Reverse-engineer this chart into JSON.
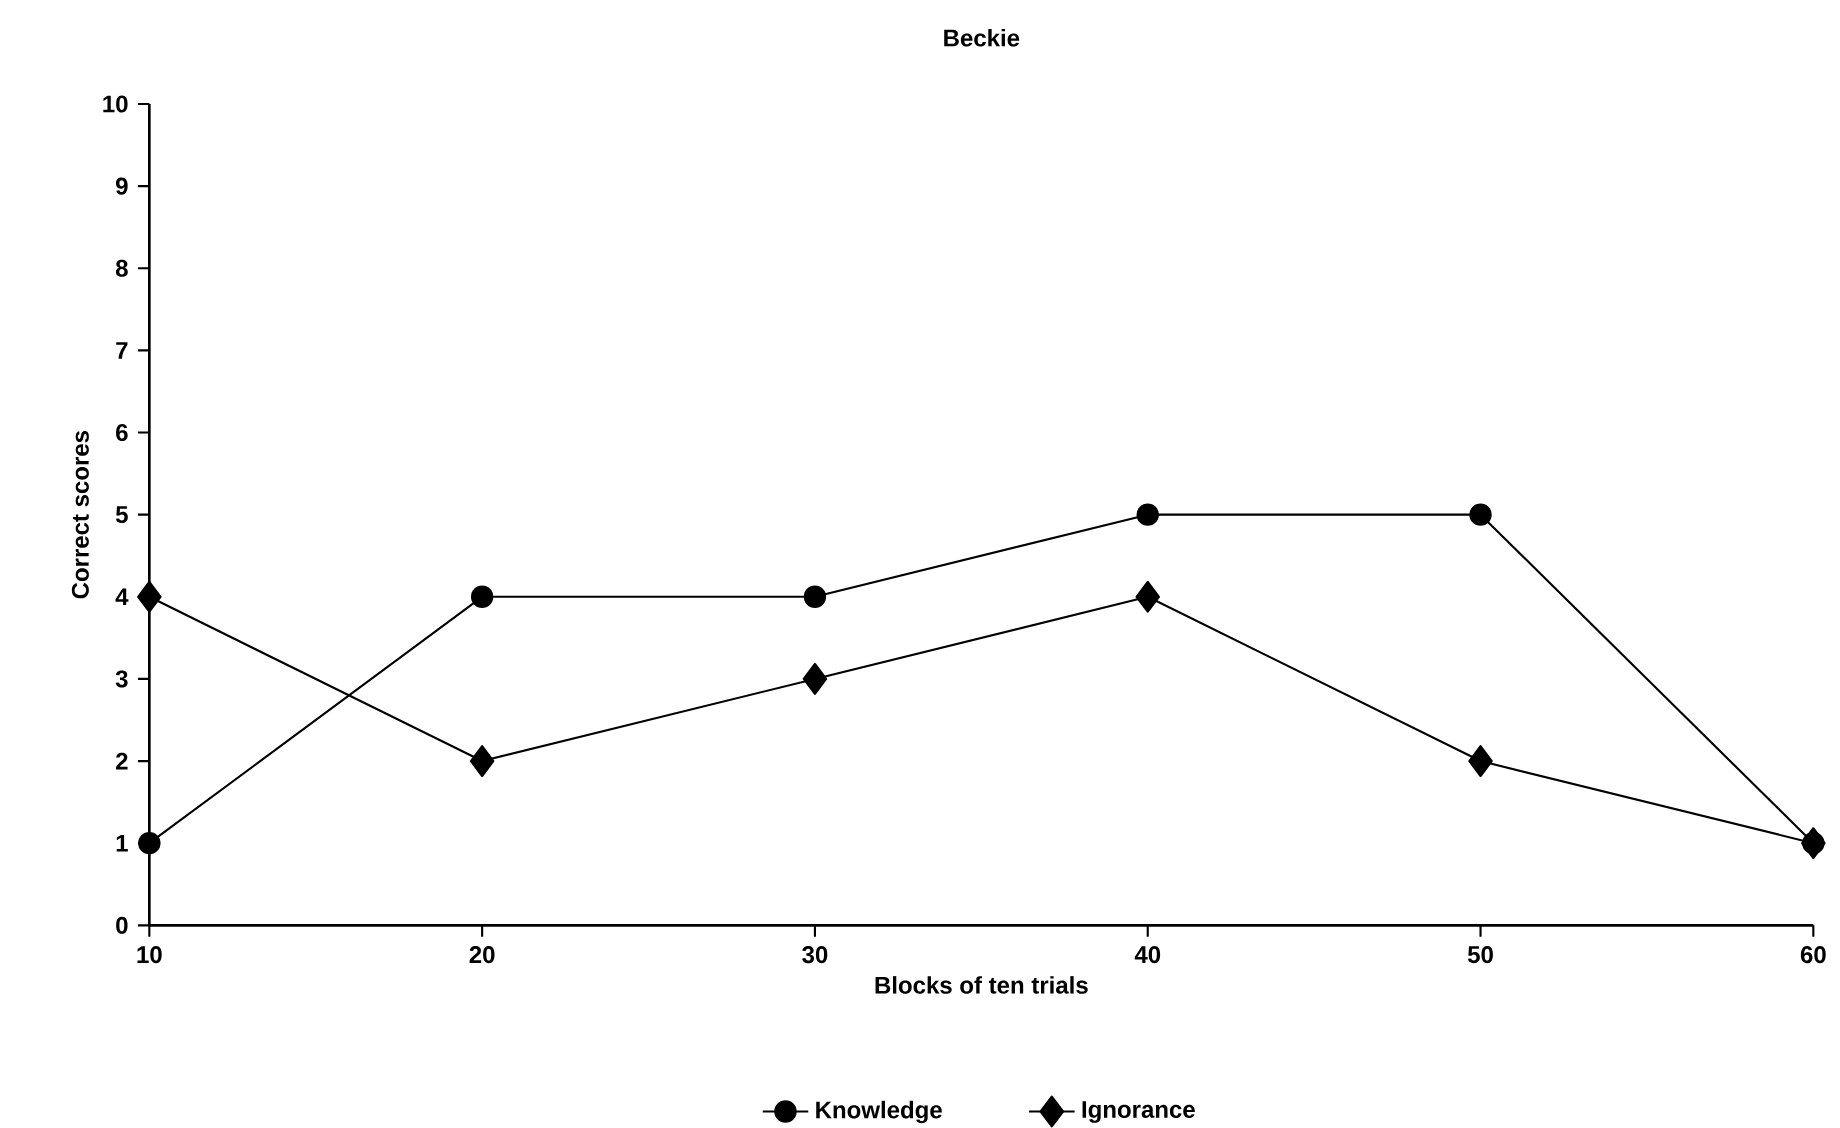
{
  "chart_data": {
    "type": "line",
    "title": "Beckie",
    "xlabel": "Blocks of ten trials",
    "ylabel": "Correct scores",
    "x": [
      10,
      20,
      30,
      40,
      50,
      60
    ],
    "series": [
      {
        "name": "Knowledge",
        "color": "#000000",
        "marker": "circle",
        "values": [
          1,
          4,
          4,
          5,
          5,
          1
        ]
      },
      {
        "name": "Ignorance",
        "color": "#000000",
        "marker": "diamond",
        "values": [
          4,
          2,
          3,
          4,
          2,
          1
        ]
      }
    ],
    "xlim": [
      10,
      60
    ],
    "xticks": [
      10,
      20,
      30,
      40,
      50,
      60
    ],
    "ylim": [
      0,
      10
    ],
    "yticks": [
      0,
      1,
      2,
      3,
      4,
      5,
      6,
      7,
      8,
      9,
      10
    ],
    "grid": false,
    "legend": "bottom",
    "line_style": "solid"
  }
}
